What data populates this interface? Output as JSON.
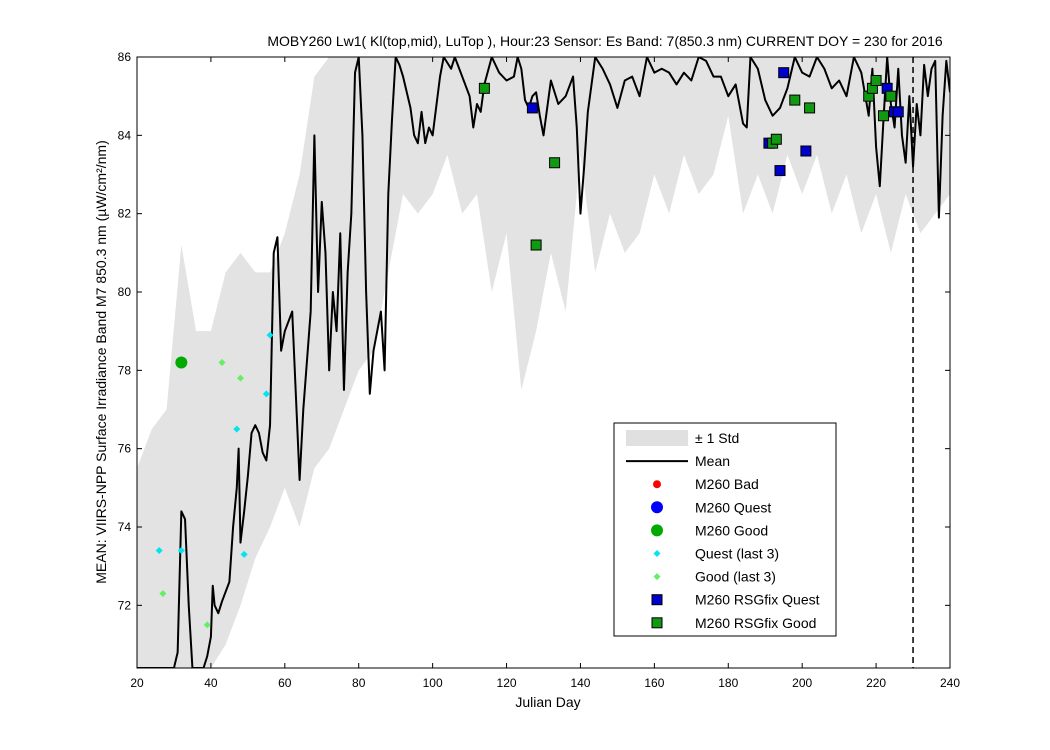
{
  "chart_data": {
    "type": "line",
    "title": "MOBY260   Lw1( Kl(top,mid), LuTop ),   Hour:23 Sensor: Es Band: 7(850.3 nm)   CURRENT DOY = 230 for 2016",
    "xlabel": "Julian Day",
    "ylabel": "MEAN: VIIRS-NPP Surface Irradiance Band M7 850.3 nm (µW/cm²/nm)",
    "xlim": [
      20,
      240
    ],
    "ylim": [
      70.4,
      86
    ],
    "xticks": [
      "20",
      "40",
      "60",
      "80",
      "100",
      "120",
      "140",
      "160",
      "180",
      "200",
      "220",
      "240"
    ],
    "yticks": [
      "72",
      "74",
      "76",
      "78",
      "80",
      "82",
      "84",
      "86"
    ],
    "current_doy": 230,
    "grid": false,
    "legend_position": "lower-right",
    "legend": [
      {
        "label": "± 1 Std",
        "kind": "band",
        "color": "#e0e0e0"
      },
      {
        "label": "Mean",
        "kind": "line",
        "color": "#000000"
      },
      {
        "label": "M260 Bad",
        "kind": "dot-small",
        "color": "#ff0000"
      },
      {
        "label": "M260 Quest",
        "kind": "dot",
        "color": "#0000ff"
      },
      {
        "label": "M260 Good",
        "kind": "dot",
        "color": "#00aa00"
      },
      {
        "label": "Quest (last 3)",
        "kind": "diamond",
        "color": "#00e5ee"
      },
      {
        "label": "Good (last 3)",
        "kind": "diamond",
        "color": "#66ee66"
      },
      {
        "label": "M260 RSGfix Quest",
        "kind": "square",
        "color": "#0000cc"
      },
      {
        "label": "M260 RSGfix Good",
        "kind": "square",
        "color": "#119911"
      }
    ],
    "mean_series": [
      [
        20,
        70.4
      ],
      [
        30,
        70.4
      ],
      [
        31,
        70.8
      ],
      [
        32,
        74.4
      ],
      [
        33,
        74.2
      ],
      [
        34,
        72.0
      ],
      [
        35,
        70.4
      ],
      [
        38,
        70.4
      ],
      [
        39,
        70.7
      ],
      [
        40,
        71.2
      ],
      [
        40.5,
        72.5
      ],
      [
        41,
        72.0
      ],
      [
        42,
        71.8
      ],
      [
        43,
        72.1
      ],
      [
        45,
        72.6
      ],
      [
        46,
        74.0
      ],
      [
        47,
        75.0
      ],
      [
        47.5,
        76.0
      ],
      [
        48,
        73.6
      ],
      [
        49,
        74.4
      ],
      [
        50,
        75.3
      ],
      [
        51,
        76.4
      ],
      [
        52,
        76.6
      ],
      [
        53,
        76.4
      ],
      [
        54,
        75.9
      ],
      [
        55,
        75.7
      ],
      [
        56,
        76.6
      ],
      [
        57,
        81.0
      ],
      [
        58,
        81.4
      ],
      [
        59,
        78.5
      ],
      [
        60,
        79.0
      ],
      [
        62,
        79.5
      ],
      [
        64,
        75.2
      ],
      [
        65,
        77.0
      ],
      [
        67,
        79.5
      ],
      [
        68,
        84.0
      ],
      [
        69,
        80.0
      ],
      [
        70,
        82.3
      ],
      [
        71,
        81.0
      ],
      [
        72,
        78.0
      ],
      [
        73,
        80.0
      ],
      [
        74,
        79.0
      ],
      [
        75,
        81.5
      ],
      [
        76,
        77.5
      ],
      [
        77,
        80.5
      ],
      [
        78,
        82.0
      ],
      [
        79,
        85.6
      ],
      [
        80,
        86.0
      ],
      [
        81,
        84.0
      ],
      [
        82,
        80.0
      ],
      [
        83,
        77.4
      ],
      [
        84,
        78.5
      ],
      [
        85,
        79.0
      ],
      [
        86,
        79.5
      ],
      [
        87,
        78.0
      ],
      [
        88,
        82.5
      ],
      [
        89,
        84.4
      ],
      [
        90,
        86.0
      ],
      [
        91,
        85.8
      ],
      [
        92,
        85.5
      ],
      [
        94,
        84.7
      ],
      [
        95,
        84.0
      ],
      [
        96,
        83.8
      ],
      [
        97,
        84.6
      ],
      [
        98,
        83.8
      ],
      [
        99,
        84.2
      ],
      [
        100,
        84.0
      ],
      [
        102,
        85.5
      ],
      [
        103,
        86.0
      ],
      [
        105,
        85.7
      ],
      [
        106,
        86.0
      ],
      [
        108,
        85.5
      ],
      [
        110,
        85.0
      ],
      [
        111,
        84.2
      ],
      [
        112,
        84.8
      ],
      [
        113,
        84.6
      ],
      [
        114,
        85.3
      ],
      [
        116,
        86.0
      ],
      [
        118,
        85.6
      ],
      [
        120,
        85.4
      ],
      [
        122,
        85.5
      ],
      [
        123,
        86.0
      ],
      [
        124,
        85.7
      ],
      [
        125,
        84.9
      ],
      [
        126,
        84.7
      ],
      [
        127,
        85.0
      ],
      [
        128,
        85.1
      ],
      [
        129,
        84.5
      ],
      [
        130,
        84.0
      ],
      [
        132,
        85.4
      ],
      [
        134,
        84.8
      ],
      [
        136,
        85.0
      ],
      [
        138,
        85.5
      ],
      [
        139,
        84.2
      ],
      [
        140,
        82.0
      ],
      [
        141,
        83.2
      ],
      [
        142,
        84.6
      ],
      [
        144,
        86.0
      ],
      [
        146,
        85.7
      ],
      [
        148,
        85.3
      ],
      [
        150,
        84.7
      ],
      [
        152,
        85.4
      ],
      [
        154,
        85.5
      ],
      [
        156,
        85.0
      ],
      [
        158,
        86.0
      ],
      [
        160,
        85.6
      ],
      [
        162,
        85.7
      ],
      [
        164,
        85.6
      ],
      [
        166,
        85.3
      ],
      [
        168,
        85.6
      ],
      [
        170,
        85.4
      ],
      [
        172,
        86.0
      ],
      [
        174,
        85.9
      ],
      [
        176,
        85.5
      ],
      [
        178,
        85.5
      ],
      [
        180,
        85.0
      ],
      [
        182,
        85.3
      ],
      [
        184,
        84.3
      ],
      [
        185,
        84.2
      ],
      [
        186,
        86.0
      ],
      [
        188,
        85.7
      ],
      [
        190,
        84.9
      ],
      [
        192,
        84.5
      ],
      [
        194,
        84.7
      ],
      [
        196,
        85.2
      ],
      [
        198,
        86.0
      ],
      [
        200,
        85.6
      ],
      [
        202,
        85.5
      ],
      [
        204,
        86.0
      ],
      [
        206,
        85.7
      ],
      [
        208,
        85.2
      ],
      [
        210,
        85.4
      ],
      [
        212,
        85.0
      ],
      [
        214,
        86.0
      ],
      [
        216,
        85.6
      ],
      [
        218,
        84.5
      ],
      [
        219,
        85.7
      ],
      [
        220,
        83.7
      ],
      [
        221,
        82.7
      ],
      [
        222,
        84.4
      ],
      [
        223,
        86.0
      ],
      [
        224,
        84.8
      ],
      [
        225,
        84.2
      ],
      [
        226,
        85.7
      ],
      [
        227,
        84.0
      ],
      [
        228,
        83.3
      ],
      [
        229,
        85.0
      ],
      [
        230,
        83.2
      ],
      [
        231,
        84.8
      ],
      [
        232,
        84.0
      ],
      [
        233,
        85.8
      ],
      [
        234,
        85.0
      ],
      [
        235,
        85.7
      ],
      [
        236,
        85.9
      ],
      [
        237,
        81.9
      ],
      [
        238,
        84.5
      ],
      [
        239,
        85.9
      ],
      [
        240,
        85.1
      ]
    ],
    "std_upper": [
      [
        20,
        75.5
      ],
      [
        24,
        76.5
      ],
      [
        28,
        77.0
      ],
      [
        32,
        81.2
      ],
      [
        36,
        79.0
      ],
      [
        40,
        79.0
      ],
      [
        44,
        80.5
      ],
      [
        48,
        81.0
      ],
      [
        52,
        80.5
      ],
      [
        56,
        80.5
      ],
      [
        60,
        81.5
      ],
      [
        64,
        83.0
      ],
      [
        68,
        85.5
      ],
      [
        72,
        86.0
      ],
      [
        240,
        86.0
      ]
    ],
    "std_lower": [
      [
        20,
        70.4
      ],
      [
        40,
        70.4
      ],
      [
        44,
        71.0
      ],
      [
        48,
        72.0
      ],
      [
        52,
        73.2
      ],
      [
        56,
        74.0
      ],
      [
        60,
        75.0
      ],
      [
        64,
        74.0
      ],
      [
        68,
        75.5
      ],
      [
        72,
        76.0
      ],
      [
        76,
        77.0
      ],
      [
        80,
        78.0
      ],
      [
        84,
        78.5
      ],
      [
        88,
        80.5
      ],
      [
        92,
        82.5
      ],
      [
        96,
        82.0
      ],
      [
        100,
        82.5
      ],
      [
        104,
        83.5
      ],
      [
        108,
        82.0
      ],
      [
        112,
        82.5
      ],
      [
        116,
        80.0
      ],
      [
        120,
        81.5
      ],
      [
        124,
        77.5
      ],
      [
        128,
        79.0
      ],
      [
        132,
        81.0
      ],
      [
        136,
        79.5
      ],
      [
        140,
        83.5
      ],
      [
        144,
        80.5
      ],
      [
        148,
        82.0
      ],
      [
        152,
        81.0
      ],
      [
        156,
        81.5
      ],
      [
        160,
        83.0
      ],
      [
        164,
        82.0
      ],
      [
        168,
        83.5
      ],
      [
        172,
        82.5
      ],
      [
        176,
        83.0
      ],
      [
        180,
        84.5
      ],
      [
        184,
        82.0
      ],
      [
        188,
        83.0
      ],
      [
        192,
        82.0
      ],
      [
        196,
        83.5
      ],
      [
        200,
        82.5
      ],
      [
        204,
        83.5
      ],
      [
        208,
        82.0
      ],
      [
        212,
        83.0
      ],
      [
        216,
        81.5
      ],
      [
        220,
        82.5
      ],
      [
        224,
        81.0
      ],
      [
        228,
        82.5
      ],
      [
        232,
        81.5
      ],
      [
        236,
        82.0
      ],
      [
        240,
        82.5
      ]
    ],
    "m260_good": [
      {
        "x": 32,
        "y": 78.2
      }
    ],
    "m260_quest": [],
    "m260_bad": [],
    "quest_last3": [
      {
        "x": 26,
        "y": 73.4
      },
      {
        "x": 32,
        "y": 73.4
      },
      {
        "x": 47,
        "y": 76.5
      },
      {
        "x": 49,
        "y": 73.3
      },
      {
        "x": 55,
        "y": 77.4
      },
      {
        "x": 56,
        "y": 78.9
      }
    ],
    "good_last3": [
      {
        "x": 27,
        "y": 72.3
      },
      {
        "x": 39,
        "y": 71.5
      },
      {
        "x": 43,
        "y": 78.2
      },
      {
        "x": 48,
        "y": 77.8
      }
    ],
    "rsgfix_quest": [
      {
        "x": 127,
        "y": 84.7
      },
      {
        "x": 191,
        "y": 83.8
      },
      {
        "x": 194,
        "y": 83.1
      },
      {
        "x": 195,
        "y": 85.6
      },
      {
        "x": 201,
        "y": 83.6
      },
      {
        "x": 223,
        "y": 85.2
      },
      {
        "x": 225,
        "y": 84.6
      },
      {
        "x": 226,
        "y": 84.6
      }
    ],
    "rsgfix_good": [
      {
        "x": 114,
        "y": 85.2
      },
      {
        "x": 128,
        "y": 81.2
      },
      {
        "x": 133,
        "y": 83.3
      },
      {
        "x": 192,
        "y": 83.8
      },
      {
        "x": 193,
        "y": 83.9
      },
      {
        "x": 198,
        "y": 84.9
      },
      {
        "x": 202,
        "y": 84.7
      },
      {
        "x": 218,
        "y": 85.0
      },
      {
        "x": 219,
        "y": 85.2
      },
      {
        "x": 220,
        "y": 85.4
      },
      {
        "x": 222,
        "y": 84.5
      },
      {
        "x": 224,
        "y": 85.0
      }
    ]
  }
}
